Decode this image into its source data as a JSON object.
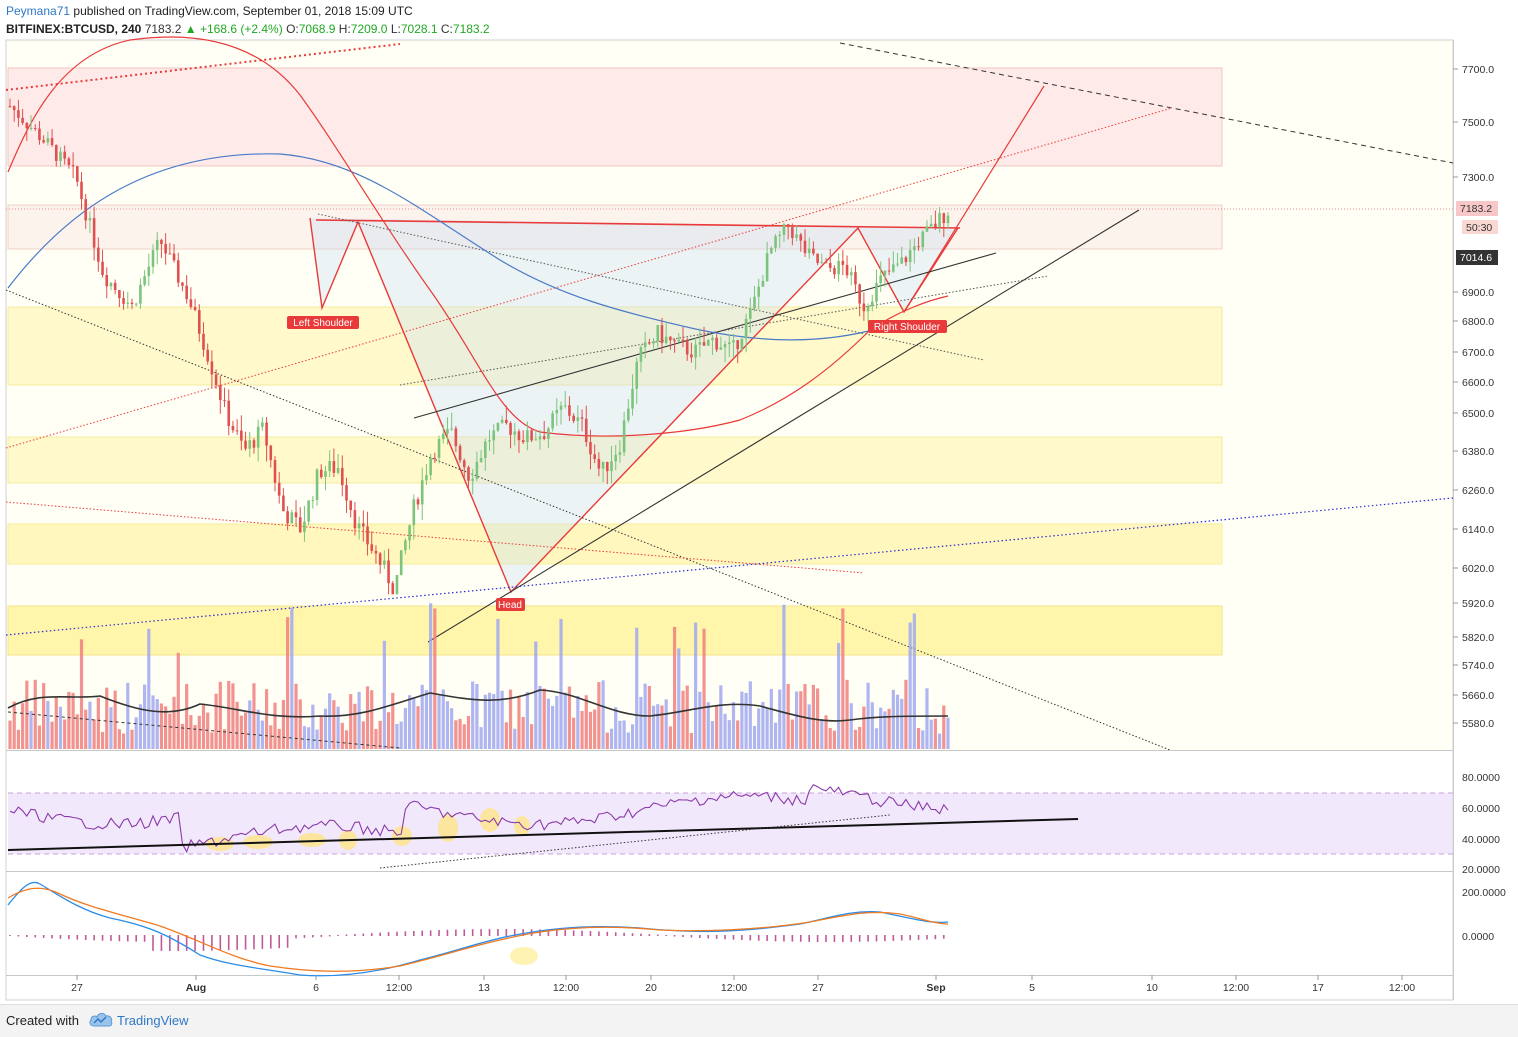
{
  "header": {
    "author": "Peymana71",
    "published_text": "published on TradingView.com, September 01, 2018 15:09 UTC",
    "symbol": "BITFINEX:BTCUSD, 240",
    "last": "7183.2",
    "change": "+168.6 (+2.4%)",
    "open_label": "O:",
    "open": "7068.9",
    "high_label": "H:",
    "high": "7209.0",
    "low_label": "L:",
    "low": "7028.1",
    "close_label": "C:",
    "close": "7183.2",
    "up_arrow": "▲"
  },
  "footer": {
    "created_with": "Created with",
    "brand": "TradingView",
    "logo_icon": "tradingview-cloud-icon"
  },
  "chart_data": {
    "type": "candlestick",
    "symbol": "BITFINEX:BTCUSD",
    "interval": "240",
    "price_axis_ticks": [
      "7700.0",
      "7500.0",
      "7300.0",
      "6900.0",
      "6800.0",
      "6700.0",
      "6600.0",
      "6500.0",
      "6380.0",
      "6260.0",
      "6140.0",
      "6020.0",
      "5920.0",
      "5820.0",
      "5740.0",
      "5660.0",
      "5580.0"
    ],
    "price_labels": {
      "last": "7183.2",
      "countdown": "50:30",
      "level": "7014.6"
    },
    "time_axis_ticks": [
      "27",
      "Aug",
      "6",
      "12:00",
      "13",
      "12:00",
      "20",
      "12:00",
      "27",
      "Sep",
      "5",
      "10",
      "12:00",
      "17",
      "12:00"
    ],
    "rsi_ticks": [
      "80.0000",
      "60.0000",
      "40.0000",
      "20.0000"
    ],
    "macd_ticks": [
      "200.0000",
      "0.0000"
    ],
    "annotations": [
      "Left Shoulder",
      "Head",
      "Right Shoulder"
    ],
    "close_path": [
      {
        "x": 0.0,
        "p": 7560
      },
      {
        "x": 0.04,
        "p": 7420
      },
      {
        "x": 0.07,
        "p": 7300
      },
      {
        "x": 0.1,
        "p": 6960
      },
      {
        "x": 0.13,
        "p": 6850
      },
      {
        "x": 0.16,
        "p": 7080
      },
      {
        "x": 0.19,
        "p": 6880
      },
      {
        "x": 0.21,
        "p": 6700
      },
      {
        "x": 0.23,
        "p": 6500
      },
      {
        "x": 0.25,
        "p": 6380
      },
      {
        "x": 0.27,
        "p": 6450
      },
      {
        "x": 0.29,
        "p": 6200
      },
      {
        "x": 0.31,
        "p": 6140
      },
      {
        "x": 0.33,
        "p": 6320
      },
      {
        "x": 0.35,
        "p": 6330
      },
      {
        "x": 0.37,
        "p": 6150
      },
      {
        "x": 0.39,
        "p": 6060
      },
      {
        "x": 0.41,
        "p": 5960
      },
      {
        "x": 0.43,
        "p": 6200
      },
      {
        "x": 0.45,
        "p": 6380
      },
      {
        "x": 0.47,
        "p": 6440
      },
      {
        "x": 0.49,
        "p": 6300
      },
      {
        "x": 0.51,
        "p": 6420
      },
      {
        "x": 0.53,
        "p": 6460
      },
      {
        "x": 0.55,
        "p": 6420
      },
      {
        "x": 0.57,
        "p": 6440
      },
      {
        "x": 0.59,
        "p": 6520
      },
      {
        "x": 0.61,
        "p": 6460
      },
      {
        "x": 0.63,
        "p": 6310
      },
      {
        "x": 0.65,
        "p": 6400
      },
      {
        "x": 0.67,
        "p": 6680
      },
      {
        "x": 0.69,
        "p": 6760
      },
      {
        "x": 0.71,
        "p": 6720
      },
      {
        "x": 0.73,
        "p": 6700
      },
      {
        "x": 0.75,
        "p": 6740
      },
      {
        "x": 0.77,
        "p": 6700
      },
      {
        "x": 0.79,
        "p": 6830
      },
      {
        "x": 0.81,
        "p": 7040
      },
      {
        "x": 0.83,
        "p": 7130
      },
      {
        "x": 0.85,
        "p": 7030
      },
      {
        "x": 0.87,
        "p": 6980
      },
      {
        "x": 0.89,
        "p": 6990
      },
      {
        "x": 0.91,
        "p": 6850
      },
      {
        "x": 0.93,
        "p": 6950
      },
      {
        "x": 0.95,
        "p": 7000
      },
      {
        "x": 0.97,
        "p": 7080
      },
      {
        "x": 1.0,
        "p": 7183
      }
    ]
  }
}
